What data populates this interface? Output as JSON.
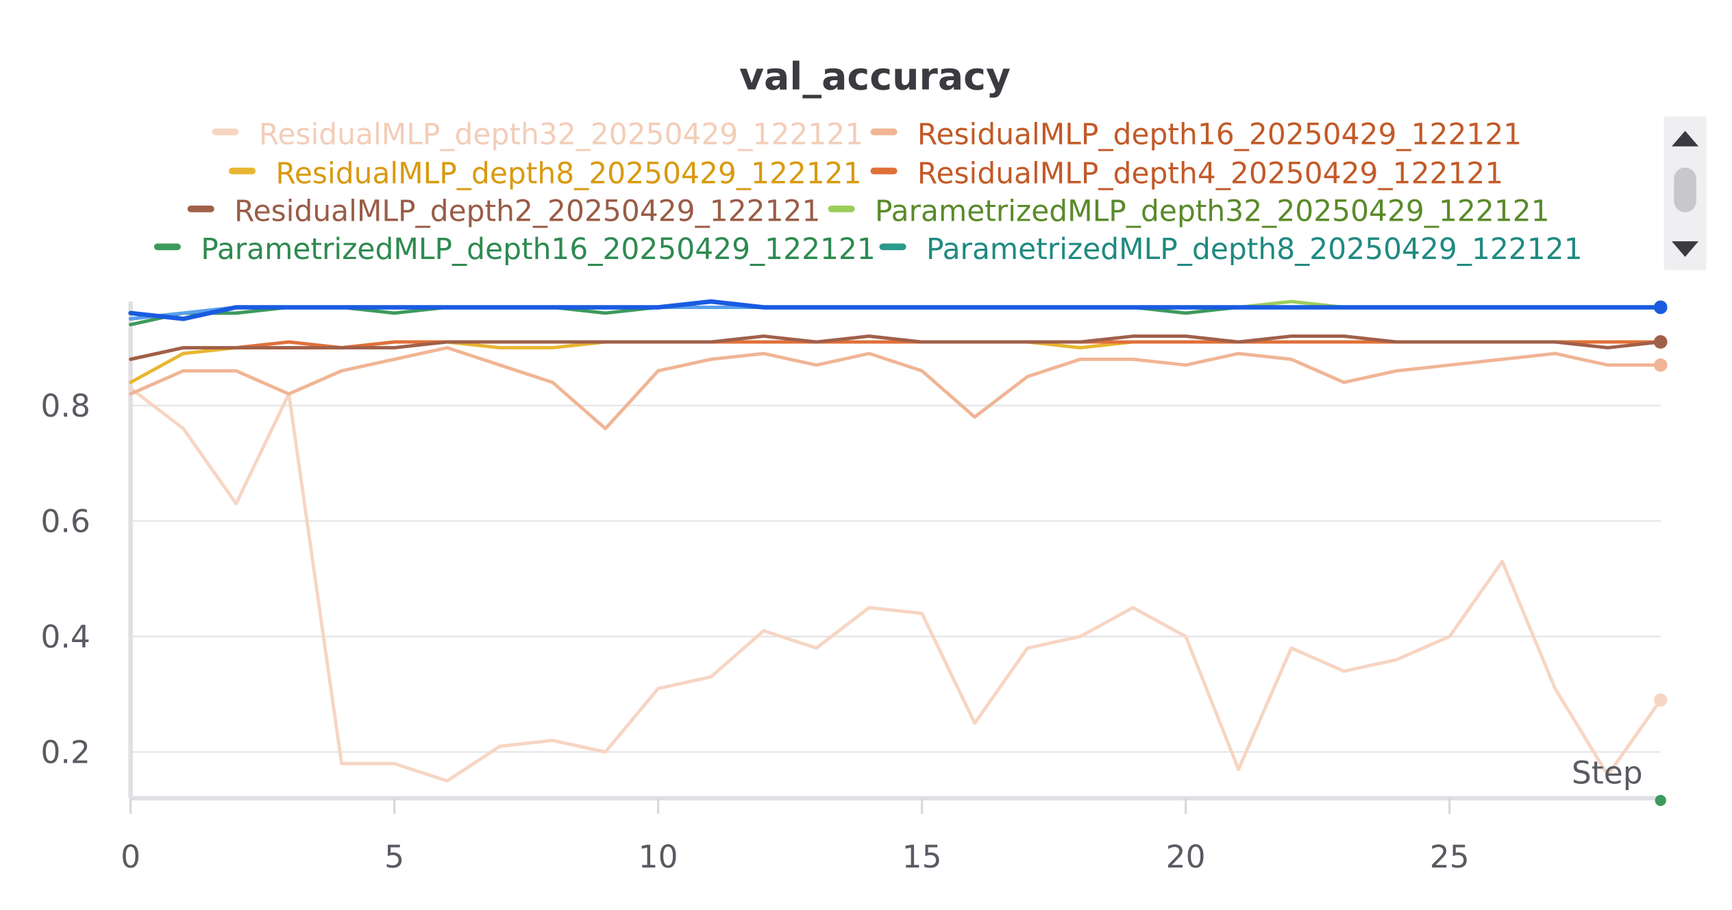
{
  "chart_data": {
    "type": "line",
    "title": "val_accuracy",
    "xlabel": "Step",
    "ylabel": "",
    "xlim": [
      0,
      29
    ],
    "ylim": [
      0.12,
      0.98
    ],
    "x_ticks": [
      0,
      5,
      10,
      15,
      20,
      25
    ],
    "y_ticks": [
      0.2,
      0.4,
      0.6,
      0.8
    ],
    "grid": true,
    "legend_position": "top",
    "x": [
      0,
      1,
      2,
      3,
      4,
      5,
      6,
      7,
      8,
      9,
      10,
      11,
      12,
      13,
      14,
      15,
      16,
      17,
      18,
      19,
      20,
      21,
      22,
      23,
      24,
      25,
      26,
      27,
      28,
      29
    ],
    "series": [
      {
        "name": "ResidualMLP_depth32_20250429_122121",
        "color": "#f7d5c3",
        "values": [
          0.83,
          0.76,
          0.63,
          0.82,
          0.18,
          0.18,
          0.15,
          0.21,
          0.22,
          0.2,
          0.31,
          0.33,
          0.41,
          0.38,
          0.45,
          0.44,
          0.25,
          0.38,
          0.4,
          0.45,
          0.4,
          0.17,
          0.38,
          0.34,
          0.36,
          0.4,
          0.53,
          0.31,
          0.16,
          0.29
        ]
      },
      {
        "name": "ResidualMLP_depth16_20250429_122121",
        "color": "#f0b595",
        "values": [
          0.82,
          0.86,
          0.86,
          0.82,
          0.86,
          0.88,
          0.9,
          0.87,
          0.84,
          0.76,
          0.86,
          0.88,
          0.89,
          0.87,
          0.89,
          0.86,
          0.78,
          0.85,
          0.88,
          0.88,
          0.87,
          0.89,
          0.88,
          0.84,
          0.86,
          0.87,
          0.88,
          0.89,
          0.87,
          0.87
        ]
      },
      {
        "name": "ResidualMLP_depth8_20250429_122121",
        "color": "#e8b630",
        "values": [
          0.84,
          0.89,
          0.9,
          0.9,
          0.9,
          0.91,
          0.91,
          0.9,
          0.9,
          0.91,
          0.91,
          0.91,
          0.91,
          0.91,
          0.91,
          0.91,
          0.91,
          0.91,
          0.9,
          0.91,
          0.91,
          0.91,
          0.91,
          0.91,
          0.91,
          0.91,
          0.91,
          0.91,
          0.91,
          0.91
        ]
      },
      {
        "name": "ResidualMLP_depth4_20250429_122121",
        "color": "#e0703a",
        "values": [
          0.88,
          0.9,
          0.9,
          0.91,
          0.9,
          0.91,
          0.91,
          0.91,
          0.91,
          0.91,
          0.91,
          0.91,
          0.91,
          0.91,
          0.91,
          0.91,
          0.91,
          0.91,
          0.91,
          0.91,
          0.91,
          0.91,
          0.91,
          0.91,
          0.91,
          0.91,
          0.91,
          0.91,
          0.91,
          0.91
        ]
      },
      {
        "name": "ResidualMLP_depth2_20250429_122121",
        "color": "#a0604a",
        "values": [
          0.88,
          0.9,
          0.9,
          0.9,
          0.9,
          0.9,
          0.91,
          0.91,
          0.91,
          0.91,
          0.91,
          0.91,
          0.92,
          0.91,
          0.92,
          0.91,
          0.91,
          0.91,
          0.91,
          0.92,
          0.92,
          0.91,
          0.92,
          0.92,
          0.91,
          0.91,
          0.91,
          0.91,
          0.9,
          0.91
        ]
      },
      {
        "name": "ParametrizedMLP_depth32_20250429_122121",
        "color": "#9ccd5a",
        "values": [
          0.95,
          0.96,
          0.96,
          0.97,
          0.97,
          0.97,
          0.97,
          0.97,
          0.97,
          0.97,
          0.97,
          0.98,
          0.97,
          0.97,
          0.97,
          0.97,
          0.97,
          0.97,
          0.97,
          0.97,
          0.97,
          0.97,
          0.98,
          0.97,
          0.97,
          0.97,
          0.97,
          0.97,
          0.97,
          0.97
        ]
      },
      {
        "name": "ParametrizedMLP_depth16_20250429_122121",
        "color": "#3d9a5c",
        "values": [
          0.94,
          0.96,
          0.96,
          0.97,
          0.97,
          0.96,
          0.97,
          0.97,
          0.97,
          0.96,
          0.97,
          0.97,
          0.97,
          0.97,
          0.97,
          0.97,
          0.97,
          0.97,
          0.97,
          0.97,
          0.96,
          0.97,
          0.97,
          0.97,
          0.97,
          0.97,
          0.97,
          0.97,
          0.97,
          0.97
        ]
      },
      {
        "name": "ParametrizedMLP_depth8_20250429_122121",
        "color": "#2a9a8a",
        "values": [
          0.95,
          0.96,
          0.97,
          0.97,
          0.97,
          0.97,
          0.97,
          0.97,
          0.97,
          0.97,
          0.97,
          0.98,
          0.97,
          0.97,
          0.97,
          0.97,
          0.97,
          0.97,
          0.97,
          0.97,
          0.97,
          0.97,
          0.97,
          0.97,
          0.97,
          0.97,
          0.97,
          0.97,
          0.97,
          0.97
        ]
      },
      {
        "name": "",
        "color": "#5aa0f0",
        "values": [
          0.95,
          0.96,
          0.97,
          0.97,
          0.97,
          0.97,
          0.97,
          0.97,
          0.97,
          0.97,
          0.97,
          0.97,
          0.97,
          0.97,
          0.97,
          0.97,
          0.97,
          0.97,
          0.97,
          0.97,
          0.97,
          0.97,
          0.97,
          0.97,
          0.97,
          0.97,
          0.97,
          0.97,
          0.97,
          0.97
        ]
      },
      {
        "name": "",
        "color": "#1a5be0",
        "values": [
          0.96,
          0.95,
          0.97,
          0.97,
          0.97,
          0.97,
          0.97,
          0.97,
          0.97,
          0.97,
          0.97,
          0.98,
          0.97,
          0.97,
          0.97,
          0.97,
          0.97,
          0.97,
          0.97,
          0.97,
          0.97,
          0.97,
          0.97,
          0.97,
          0.97,
          0.97,
          0.97,
          0.97,
          0.97,
          0.97
        ]
      }
    ]
  }
}
